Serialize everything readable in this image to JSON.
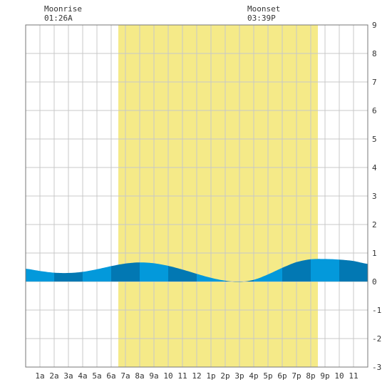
{
  "moon": {
    "rise_label": "Moonrise",
    "rise_time": "01:26A",
    "set_label": "Moonset",
    "set_time": "03:39P"
  },
  "chart_data": {
    "type": "area",
    "x_ticks": [
      "1a",
      "2a",
      "3a",
      "4a",
      "5a",
      "6a",
      "7a",
      "8a",
      "9a",
      "10",
      "11",
      "12",
      "1p",
      "2p",
      "3p",
      "4p",
      "5p",
      "6p",
      "7p",
      "8p",
      "9p",
      "10",
      "11"
    ],
    "xlim": [
      0,
      24
    ],
    "y_ticks": [
      "9",
      "8",
      "7",
      "6",
      "5",
      "4",
      "3",
      "2",
      "1",
      "0",
      "-1",
      "-2",
      "-3"
    ],
    "ylim": [
      -3,
      9
    ],
    "grid": true,
    "daylight": {
      "start_hour": 6.5,
      "end_hour": 20.5
    },
    "tide": {
      "x": [
        0,
        1,
        2,
        3,
        4,
        5,
        6,
        7,
        8,
        9,
        10,
        11,
        12,
        13,
        14,
        15,
        16,
        17,
        18,
        19,
        20,
        21,
        22,
        23,
        24
      ],
      "y": [
        0.45,
        0.37,
        0.31,
        0.3,
        0.34,
        0.43,
        0.54,
        0.63,
        0.67,
        0.64,
        0.55,
        0.42,
        0.27,
        0.13,
        0.03,
        -0.01,
        0.06,
        0.25,
        0.48,
        0.68,
        0.78,
        0.79,
        0.77,
        0.72,
        0.62
      ]
    },
    "colors": {
      "daylight": "#f5ea88",
      "tide_light": "#0399db",
      "tide_dark": "#0278b3",
      "grid": "#c8c8c8"
    }
  }
}
